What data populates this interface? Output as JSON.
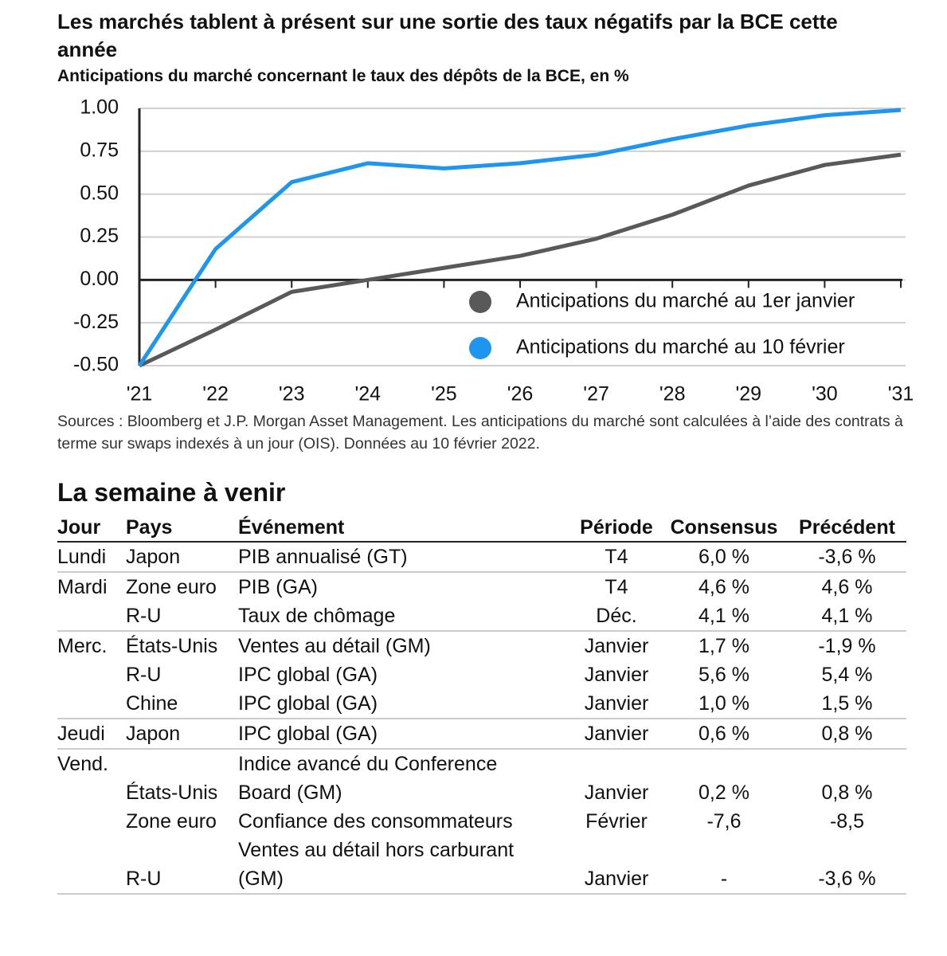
{
  "chart_data": {
    "type": "line",
    "title": "Les marchés tablent à présent sur une sortie des taux négatifs par la BCE cette année",
    "subtitle": "Anticipations du marché concernant le taux des dépôts de la BCE, en %",
    "categories": [
      "'21",
      "'22",
      "'23",
      "'24",
      "'25",
      "'26",
      "'27",
      "'28",
      "'29",
      "'30",
      "'31"
    ],
    "series": [
      {
        "name": "Anticipations du marché au 1er janvier",
        "color": "#58595b",
        "values": [
          -0.5,
          -0.29,
          -0.07,
          0.0,
          0.07,
          0.14,
          0.24,
          0.38,
          0.55,
          0.67,
          0.73
        ]
      },
      {
        "name": "Anticipations du marché au 10 février",
        "color": "#1e96f0",
        "values": [
          -0.5,
          0.18,
          0.57,
          0.68,
          0.65,
          0.68,
          0.73,
          0.82,
          0.9,
          0.96,
          0.99
        ]
      }
    ],
    "ylim": [
      -0.5,
      1.0
    ],
    "yticks": [
      {
        "value": -0.5,
        "label": "-0.50"
      },
      -0.25,
      {
        "value": 0,
        "label": "0.00"
      },
      0.25,
      {
        "value": 0.5,
        "label": "0.50"
      },
      0.75,
      {
        "value": 1,
        "label": "1.00"
      }
    ],
    "grid": true,
    "legend": "bottom-right",
    "source": "Sources : Bloomberg et J.P. Morgan Asset Management. Les anticipations du marché sont calculées à l’aide des contrats à terme sur swaps indexés à un jour (OIS). Données au 10 février 2022."
  },
  "table": {
    "title": "La semaine à venir",
    "columns": [
      "Jour",
      "Pays",
      "Événement",
      "Période",
      "Consensus",
      "Précédent"
    ],
    "rows": [
      [
        "Lundi",
        "Japon",
        "PIB annualisé (GT)",
        "T4",
        "6,0 %",
        "-3,6 %"
      ],
      [
        "Mardi",
        "Zone euro",
        "PIB (GA)",
        "T4",
        "4,6 %",
        "4,6 %"
      ],
      [
        null,
        "R-U",
        "Taux de chômage",
        "Déc.",
        "4,1 %",
        "4,1 %"
      ],
      [
        "Merc.",
        "États-Unis",
        "Ventes au détail (GM)",
        "Janvier",
        "1,7 %",
        "-1,9 %"
      ],
      [
        null,
        "R-U",
        "IPC global (GA)",
        "Janvier",
        "5,6 %",
        "5,4 %"
      ],
      [
        null,
        "Chine",
        "IPC global (GA)",
        "Janvier",
        "1,0 %",
        "1,5 %"
      ],
      [
        "Jeudi",
        "Japon",
        "IPC global (GA)",
        "Janvier",
        "0,6 %",
        "0,8 %"
      ],
      [
        "Vend.",
        "États-Unis",
        "Indice avancé du Conference Board (GM)",
        "Janvier",
        "0,2 %",
        "0,8 %"
      ],
      [
        null,
        "Zone euro",
        "Confiance des consommateurs",
        "Février",
        "-7,6",
        "-8,5"
      ],
      [
        null,
        "R-U",
        "Ventes au détail hors carburant (GM)",
        "Janvier",
        "-",
        "-3,6 %"
      ]
    ]
  }
}
